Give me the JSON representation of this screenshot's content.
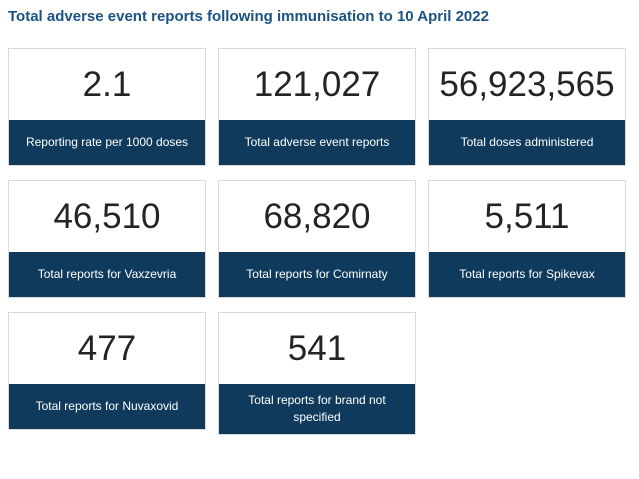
{
  "header": {
    "title": "Total adverse event reports following immunisation to 10 April 2022"
  },
  "cards": [
    {
      "value": "2.1",
      "label": "Reporting rate per 1000 doses"
    },
    {
      "value": "121,027",
      "label": "Total adverse event reports"
    },
    {
      "value": "56,923,565",
      "label": "Total doses administered"
    },
    {
      "value": "46,510",
      "label": "Total reports for Vaxzevria"
    },
    {
      "value": "68,820",
      "label": "Total reports for Comirnaty"
    },
    {
      "value": "5,511",
      "label": "Total reports for Spikevax"
    },
    {
      "value": "477",
      "label": "Total reports for Nuvaxovid"
    },
    {
      "value": "541",
      "label": "Total reports for brand not specified"
    }
  ],
  "colors": {
    "accent_navy": "#103a5c",
    "title_blue": "#1b5383",
    "card_border": "#d9d9d9",
    "value_text": "#252423",
    "label_text": "#ffffff",
    "background": "#ffffff"
  },
  "chart_data": {
    "type": "table",
    "title": "Total adverse event reports following immunisation to 10 April 2022",
    "categories": [
      "Reporting rate per 1000 doses",
      "Total adverse event reports",
      "Total doses administered",
      "Total reports for Vaxzevria",
      "Total reports for Comirnaty",
      "Total reports for Spikevax",
      "Total reports for Nuvaxovid",
      "Total reports for brand not specified"
    ],
    "values": [
      2.1,
      121027,
      56923565,
      46510,
      68820,
      5511,
      477,
      541
    ],
    "layout": "3-column grid of KPI cards, white value area above navy label bar, grid off, no axes"
  }
}
